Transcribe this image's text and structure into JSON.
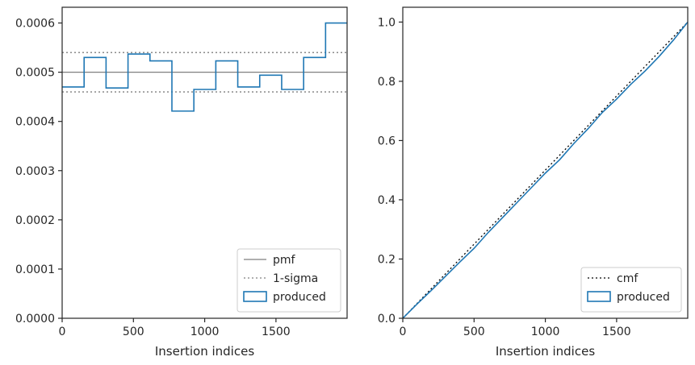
{
  "chart_data": [
    {
      "type": "line",
      "xlabel": "Insertion indices",
      "ylabel": "",
      "xlim": [
        0,
        1999
      ],
      "ylim": [
        0,
        0.000632
      ],
      "xticks": [
        0,
        500,
        1000,
        1500
      ],
      "yticks": [
        "0.0000",
        "0.0001",
        "0.0002",
        "0.0003",
        "0.0004",
        "0.0005",
        "0.0006"
      ],
      "ytick_values": [
        0,
        0.0001,
        0.0002,
        0.0003,
        0.0004,
        0.0005,
        0.0006
      ],
      "legend_position": "lower-right",
      "series": [
        {
          "name": "pmf",
          "style": "solid",
          "color": "#7f7f7f",
          "x": [
            0,
            1999
          ],
          "y": [
            0.0005,
            0.0005
          ]
        },
        {
          "name": "1-sigma",
          "style": "dotted",
          "color": "#7f7f7f",
          "x": [
            0,
            1999
          ],
          "y": [
            0.00054,
            0.00054
          ]
        },
        {
          "name": "1-sigma-lower",
          "style": "dotted",
          "color": "#7f7f7f",
          "x": [
            0,
            1999
          ],
          "y": [
            0.00046,
            0.00046
          ]
        },
        {
          "name": "produced",
          "style": "step",
          "color": "#1f77b4",
          "bin_edges": [
            0,
            154,
            308,
            462,
            616,
            770,
            924,
            1078,
            1232,
            1386,
            1540,
            1694,
            1848,
            1999
          ],
          "values": [
            0.00047,
            0.00053,
            0.000468,
            0.000537,
            0.000523,
            0.000421,
            0.000465,
            0.000523,
            0.00047,
            0.000494,
            0.000465,
            0.00053,
            0.0006
          ]
        }
      ],
      "legend": [
        "pmf",
        "1-sigma",
        "produced"
      ]
    },
    {
      "type": "line",
      "xlabel": "Insertion indices",
      "ylabel": "",
      "xlim": [
        0,
        1999
      ],
      "ylim": [
        0,
        1.05
      ],
      "xticks": [
        0,
        500,
        1000,
        1500
      ],
      "yticks": [
        "0.0",
        "0.2",
        "0.4",
        "0.6",
        "0.8",
        "1.0"
      ],
      "ytick_values": [
        0,
        0.2,
        0.4,
        0.6,
        0.8,
        1.0
      ],
      "legend_position": "lower-right",
      "series": [
        {
          "name": "cmf",
          "style": "dotted",
          "color": "#000000",
          "x": [
            0,
            1999
          ],
          "y": [
            0,
            1.0
          ]
        },
        {
          "name": "produced",
          "style": "step",
          "color": "#1f77b4",
          "x": [
            0,
            100,
            200,
            300,
            400,
            500,
            600,
            700,
            800,
            900,
            1000,
            1100,
            1200,
            1300,
            1400,
            1500,
            1600,
            1700,
            1800,
            1900,
            1999
          ],
          "y": [
            0,
            0.048,
            0.094,
            0.142,
            0.19,
            0.236,
            0.29,
            0.34,
            0.39,
            0.44,
            0.49,
            0.535,
            0.59,
            0.64,
            0.695,
            0.74,
            0.79,
            0.835,
            0.885,
            0.94,
            1.0
          ]
        }
      ],
      "legend": [
        "cmf",
        "produced"
      ]
    }
  ]
}
